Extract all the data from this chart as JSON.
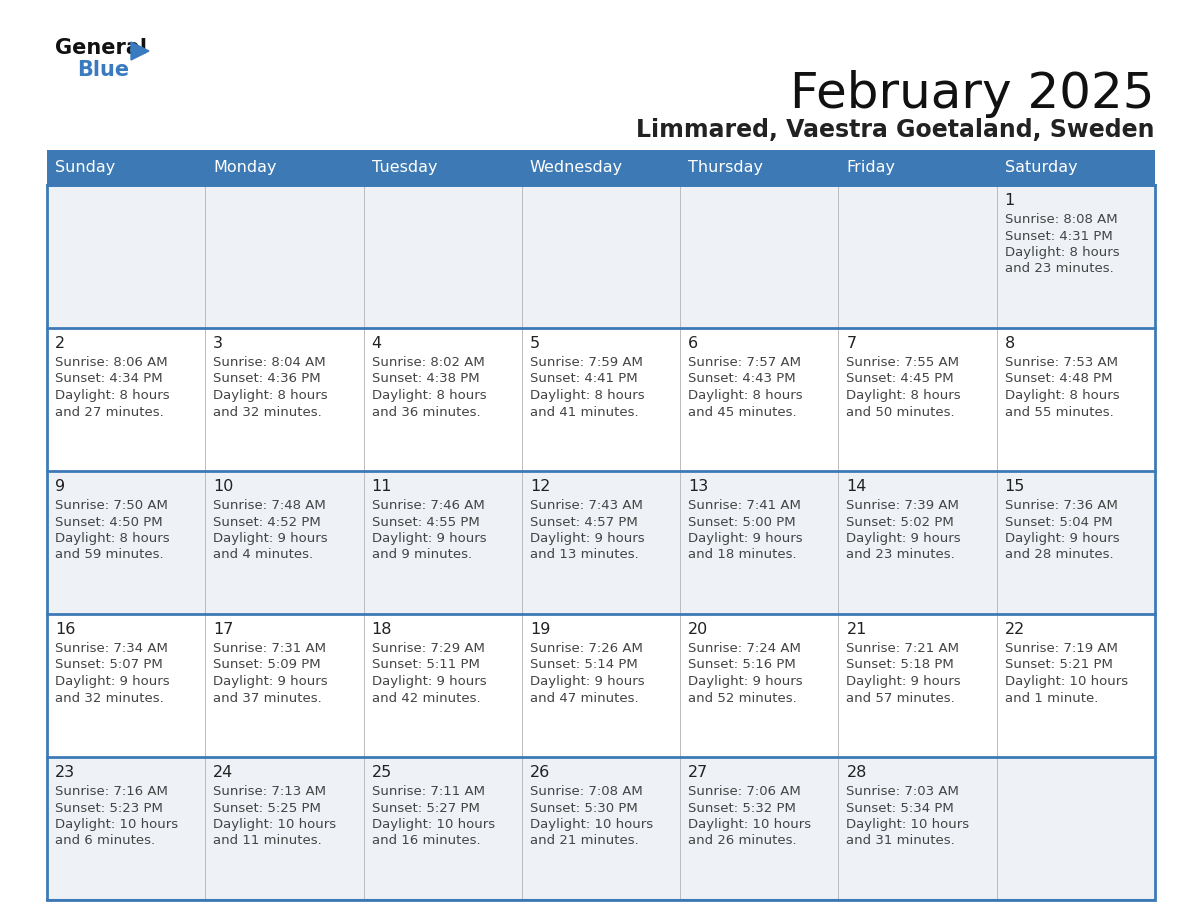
{
  "title": "February 2025",
  "subtitle": "Limmared, Vaestra Goetaland, Sweden",
  "header_color": "#3d7ab5",
  "header_text_color": "#ffffff",
  "day_headers": [
    "Sunday",
    "Monday",
    "Tuesday",
    "Wednesday",
    "Thursday",
    "Friday",
    "Saturday"
  ],
  "row_bg_odd": "#eef2f7",
  "row_bg_even": "#ffffff",
  "line_color": "#3d7ab5",
  "day_num_color": "#222222",
  "info_text_color": "#444444",
  "calendar_data": [
    [
      null,
      null,
      null,
      null,
      null,
      null,
      {
        "day": "1",
        "sunrise": "8:08 AM",
        "sunset": "4:31 PM",
        "daylight": "8 hours",
        "daylight2": "and 23 minutes."
      }
    ],
    [
      {
        "day": "2",
        "sunrise": "8:06 AM",
        "sunset": "4:34 PM",
        "daylight": "8 hours",
        "daylight2": "and 27 minutes."
      },
      {
        "day": "3",
        "sunrise": "8:04 AM",
        "sunset": "4:36 PM",
        "daylight": "8 hours",
        "daylight2": "and 32 minutes."
      },
      {
        "day": "4",
        "sunrise": "8:02 AM",
        "sunset": "4:38 PM",
        "daylight": "8 hours",
        "daylight2": "and 36 minutes."
      },
      {
        "day": "5",
        "sunrise": "7:59 AM",
        "sunset": "4:41 PM",
        "daylight": "8 hours",
        "daylight2": "and 41 minutes."
      },
      {
        "day": "6",
        "sunrise": "7:57 AM",
        "sunset": "4:43 PM",
        "daylight": "8 hours",
        "daylight2": "and 45 minutes."
      },
      {
        "day": "7",
        "sunrise": "7:55 AM",
        "sunset": "4:45 PM",
        "daylight": "8 hours",
        "daylight2": "and 50 minutes."
      },
      {
        "day": "8",
        "sunrise": "7:53 AM",
        "sunset": "4:48 PM",
        "daylight": "8 hours",
        "daylight2": "and 55 minutes."
      }
    ],
    [
      {
        "day": "9",
        "sunrise": "7:50 AM",
        "sunset": "4:50 PM",
        "daylight": "8 hours",
        "daylight2": "and 59 minutes."
      },
      {
        "day": "10",
        "sunrise": "7:48 AM",
        "sunset": "4:52 PM",
        "daylight": "9 hours",
        "daylight2": "and 4 minutes."
      },
      {
        "day": "11",
        "sunrise": "7:46 AM",
        "sunset": "4:55 PM",
        "daylight": "9 hours",
        "daylight2": "and 9 minutes."
      },
      {
        "day": "12",
        "sunrise": "7:43 AM",
        "sunset": "4:57 PM",
        "daylight": "9 hours",
        "daylight2": "and 13 minutes."
      },
      {
        "day": "13",
        "sunrise": "7:41 AM",
        "sunset": "5:00 PM",
        "daylight": "9 hours",
        "daylight2": "and 18 minutes."
      },
      {
        "day": "14",
        "sunrise": "7:39 AM",
        "sunset": "5:02 PM",
        "daylight": "9 hours",
        "daylight2": "and 23 minutes."
      },
      {
        "day": "15",
        "sunrise": "7:36 AM",
        "sunset": "5:04 PM",
        "daylight": "9 hours",
        "daylight2": "and 28 minutes."
      }
    ],
    [
      {
        "day": "16",
        "sunrise": "7:34 AM",
        "sunset": "5:07 PM",
        "daylight": "9 hours",
        "daylight2": "and 32 minutes."
      },
      {
        "day": "17",
        "sunrise": "7:31 AM",
        "sunset": "5:09 PM",
        "daylight": "9 hours",
        "daylight2": "and 37 minutes."
      },
      {
        "day": "18",
        "sunrise": "7:29 AM",
        "sunset": "5:11 PM",
        "daylight": "9 hours",
        "daylight2": "and 42 minutes."
      },
      {
        "day": "19",
        "sunrise": "7:26 AM",
        "sunset": "5:14 PM",
        "daylight": "9 hours",
        "daylight2": "and 47 minutes."
      },
      {
        "day": "20",
        "sunrise": "7:24 AM",
        "sunset": "5:16 PM",
        "daylight": "9 hours",
        "daylight2": "and 52 minutes."
      },
      {
        "day": "21",
        "sunrise": "7:21 AM",
        "sunset": "5:18 PM",
        "daylight": "9 hours",
        "daylight2": "and 57 minutes."
      },
      {
        "day": "22",
        "sunrise": "7:19 AM",
        "sunset": "5:21 PM",
        "daylight": "10 hours",
        "daylight2": "and 1 minute."
      }
    ],
    [
      {
        "day": "23",
        "sunrise": "7:16 AM",
        "sunset": "5:23 PM",
        "daylight": "10 hours",
        "daylight2": "and 6 minutes."
      },
      {
        "day": "24",
        "sunrise": "7:13 AM",
        "sunset": "5:25 PM",
        "daylight": "10 hours",
        "daylight2": "and 11 minutes."
      },
      {
        "day": "25",
        "sunrise": "7:11 AM",
        "sunset": "5:27 PM",
        "daylight": "10 hours",
        "daylight2": "and 16 minutes."
      },
      {
        "day": "26",
        "sunrise": "7:08 AM",
        "sunset": "5:30 PM",
        "daylight": "10 hours",
        "daylight2": "and 21 minutes."
      },
      {
        "day": "27",
        "sunrise": "7:06 AM",
        "sunset": "5:32 PM",
        "daylight": "10 hours",
        "daylight2": "and 26 minutes."
      },
      {
        "day": "28",
        "sunrise": "7:03 AM",
        "sunset": "5:34 PM",
        "daylight": "10 hours",
        "daylight2": "and 31 minutes."
      },
      null
    ]
  ]
}
